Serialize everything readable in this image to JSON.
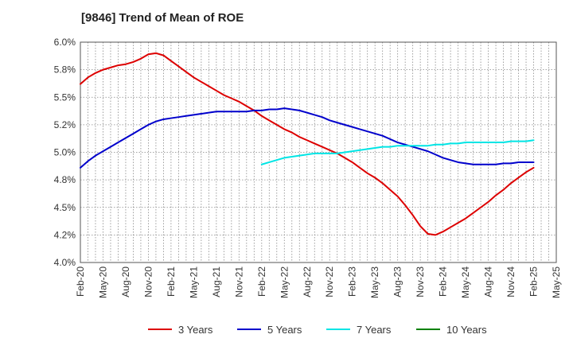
{
  "chart_data": {
    "type": "line",
    "title": "[9846]  Trend of Mean of ROE",
    "xlabel": "",
    "ylabel": "",
    "y_range": [
      4.0,
      6.0
    ],
    "y_ticks": [
      "4.0%",
      "4.2%",
      "4.5%",
      "4.8%",
      "5.0%",
      "5.2%",
      "5.5%",
      "5.8%",
      "6.0%"
    ],
    "x_ticks": [
      "Feb-20",
      "May-20",
      "Aug-20",
      "Nov-20",
      "Feb-21",
      "May-21",
      "Aug-21",
      "Nov-21",
      "Feb-22",
      "May-22",
      "Aug-22",
      "Nov-22",
      "Feb-23",
      "May-23",
      "Aug-23",
      "Nov-23",
      "Feb-24",
      "May-24",
      "Aug-24",
      "Nov-24",
      "Feb-25",
      "May-25"
    ],
    "grid": true,
    "legend_position": "bottom",
    "series": [
      {
        "name": "3 Years",
        "color": "#dd0000",
        "points": [
          [
            "Feb-20",
            5.62
          ],
          [
            "Mar-20",
            5.68
          ],
          [
            "Apr-20",
            5.72
          ],
          [
            "May-20",
            5.75
          ],
          [
            "Jun-20",
            5.77
          ],
          [
            "Jul-20",
            5.79
          ],
          [
            "Aug-20",
            5.8
          ],
          [
            "Sep-20",
            5.82
          ],
          [
            "Oct-20",
            5.85
          ],
          [
            "Nov-20",
            5.89
          ],
          [
            "Dec-20",
            5.9
          ],
          [
            "Jan-21",
            5.88
          ],
          [
            "Feb-21",
            5.83
          ],
          [
            "Mar-21",
            5.78
          ],
          [
            "Apr-21",
            5.73
          ],
          [
            "May-21",
            5.68
          ],
          [
            "Jun-21",
            5.64
          ],
          [
            "Jul-21",
            5.6
          ],
          [
            "Aug-21",
            5.56
          ],
          [
            "Sep-21",
            5.52
          ],
          [
            "Oct-21",
            5.49
          ],
          [
            "Nov-21",
            5.46
          ],
          [
            "Dec-21",
            5.42
          ],
          [
            "Jan-22",
            5.38
          ],
          [
            "Feb-22",
            5.33
          ],
          [
            "Mar-22",
            5.29
          ],
          [
            "Apr-22",
            5.25
          ],
          [
            "May-22",
            5.21
          ],
          [
            "Jun-22",
            5.18
          ],
          [
            "Jul-22",
            5.14
          ],
          [
            "Aug-22",
            5.11
          ],
          [
            "Sep-22",
            5.08
          ],
          [
            "Oct-22",
            5.05
          ],
          [
            "Nov-22",
            5.02
          ],
          [
            "Dec-22",
            4.99
          ],
          [
            "Jan-23",
            4.95
          ],
          [
            "Feb-23",
            4.91
          ],
          [
            "Mar-23",
            4.86
          ],
          [
            "Apr-23",
            4.81
          ],
          [
            "May-23",
            4.77
          ],
          [
            "Jun-23",
            4.72
          ],
          [
            "Jul-23",
            4.66
          ],
          [
            "Aug-23",
            4.6
          ],
          [
            "Sep-23",
            4.52
          ],
          [
            "Oct-23",
            4.43
          ],
          [
            "Nov-23",
            4.33
          ],
          [
            "Dec-23",
            4.26
          ],
          [
            "Jan-24",
            4.25
          ],
          [
            "Feb-24",
            4.28
          ],
          [
            "Mar-24",
            4.32
          ],
          [
            "Apr-24",
            4.36
          ],
          [
            "May-24",
            4.4
          ],
          [
            "Jun-24",
            4.45
          ],
          [
            "Jul-24",
            4.5
          ],
          [
            "Aug-24",
            4.55
          ],
          [
            "Sep-24",
            4.61
          ],
          [
            "Oct-24",
            4.66
          ],
          [
            "Nov-24",
            4.72
          ],
          [
            "Dec-24",
            4.77
          ],
          [
            "Jan-25",
            4.82
          ],
          [
            "Feb-25",
            4.86
          ]
        ]
      },
      {
        "name": "5 Years",
        "color": "#0000cc",
        "points": [
          [
            "Feb-20",
            4.86
          ],
          [
            "Mar-20",
            4.92
          ],
          [
            "Apr-20",
            4.97
          ],
          [
            "May-20",
            5.01
          ],
          [
            "Jun-20",
            5.05
          ],
          [
            "Jul-20",
            5.09
          ],
          [
            "Aug-20",
            5.13
          ],
          [
            "Sep-20",
            5.17
          ],
          [
            "Oct-20",
            5.21
          ],
          [
            "Nov-20",
            5.25
          ],
          [
            "Dec-20",
            5.28
          ],
          [
            "Jan-21",
            5.3
          ],
          [
            "Feb-21",
            5.31
          ],
          [
            "Mar-21",
            5.32
          ],
          [
            "Apr-21",
            5.33
          ],
          [
            "May-21",
            5.34
          ],
          [
            "Jun-21",
            5.35
          ],
          [
            "Jul-21",
            5.36
          ],
          [
            "Aug-21",
            5.37
          ],
          [
            "Sep-21",
            5.37
          ],
          [
            "Oct-21",
            5.37
          ],
          [
            "Nov-21",
            5.37
          ],
          [
            "Dec-21",
            5.37
          ],
          [
            "Jan-22",
            5.38
          ],
          [
            "Feb-22",
            5.38
          ],
          [
            "Mar-22",
            5.39
          ],
          [
            "Apr-22",
            5.39
          ],
          [
            "May-22",
            5.4
          ],
          [
            "Jun-22",
            5.39
          ],
          [
            "Jul-22",
            5.38
          ],
          [
            "Aug-22",
            5.36
          ],
          [
            "Sep-22",
            5.34
          ],
          [
            "Oct-22",
            5.32
          ],
          [
            "Nov-22",
            5.29
          ],
          [
            "Dec-22",
            5.27
          ],
          [
            "Jan-23",
            5.25
          ],
          [
            "Feb-23",
            5.23
          ],
          [
            "Mar-23",
            5.21
          ],
          [
            "Apr-23",
            5.19
          ],
          [
            "May-23",
            5.17
          ],
          [
            "Jun-23",
            5.15
          ],
          [
            "Jul-23",
            5.12
          ],
          [
            "Aug-23",
            5.09
          ],
          [
            "Sep-23",
            5.07
          ],
          [
            "Oct-23",
            5.05
          ],
          [
            "Nov-23",
            5.03
          ],
          [
            "Dec-23",
            5.01
          ],
          [
            "Jan-24",
            4.98
          ],
          [
            "Feb-24",
            4.95
          ],
          [
            "Mar-24",
            4.93
          ],
          [
            "Apr-24",
            4.91
          ],
          [
            "May-24",
            4.9
          ],
          [
            "Jun-24",
            4.89
          ],
          [
            "Jul-24",
            4.89
          ],
          [
            "Aug-24",
            4.89
          ],
          [
            "Sep-24",
            4.89
          ],
          [
            "Oct-24",
            4.9
          ],
          [
            "Nov-24",
            4.9
          ],
          [
            "Dec-24",
            4.91
          ],
          [
            "Jan-25",
            4.91
          ],
          [
            "Feb-25",
            4.91
          ]
        ]
      },
      {
        "name": "7 Years",
        "color": "#00e5e5",
        "points": [
          [
            "Feb-22",
            4.89
          ],
          [
            "Mar-22",
            4.91
          ],
          [
            "Apr-22",
            4.93
          ],
          [
            "May-22",
            4.95
          ],
          [
            "Jun-22",
            4.96
          ],
          [
            "Jul-22",
            4.97
          ],
          [
            "Aug-22",
            4.98
          ],
          [
            "Sep-22",
            4.99
          ],
          [
            "Oct-22",
            4.99
          ],
          [
            "Nov-22",
            4.99
          ],
          [
            "Dec-22",
            4.99
          ],
          [
            "Jan-23",
            5.0
          ],
          [
            "Feb-23",
            5.01
          ],
          [
            "Mar-23",
            5.02
          ],
          [
            "Apr-23",
            5.03
          ],
          [
            "May-23",
            5.04
          ],
          [
            "Jun-23",
            5.05
          ],
          [
            "Jul-23",
            5.05
          ],
          [
            "Aug-23",
            5.06
          ],
          [
            "Sep-23",
            5.06
          ],
          [
            "Oct-23",
            5.06
          ],
          [
            "Nov-23",
            5.06
          ],
          [
            "Dec-23",
            5.06
          ],
          [
            "Jan-24",
            5.07
          ],
          [
            "Feb-24",
            5.07
          ],
          [
            "Mar-24",
            5.08
          ],
          [
            "Apr-24",
            5.08
          ],
          [
            "May-24",
            5.09
          ],
          [
            "Jun-24",
            5.09
          ],
          [
            "Jul-24",
            5.09
          ],
          [
            "Aug-24",
            5.09
          ],
          [
            "Sep-24",
            5.09
          ],
          [
            "Oct-24",
            5.09
          ],
          [
            "Nov-24",
            5.1
          ],
          [
            "Dec-24",
            5.1
          ],
          [
            "Jan-25",
            5.1
          ],
          [
            "Feb-25",
            5.11
          ]
        ]
      },
      {
        "name": "10 Years",
        "color": "#008000",
        "points": []
      }
    ]
  }
}
